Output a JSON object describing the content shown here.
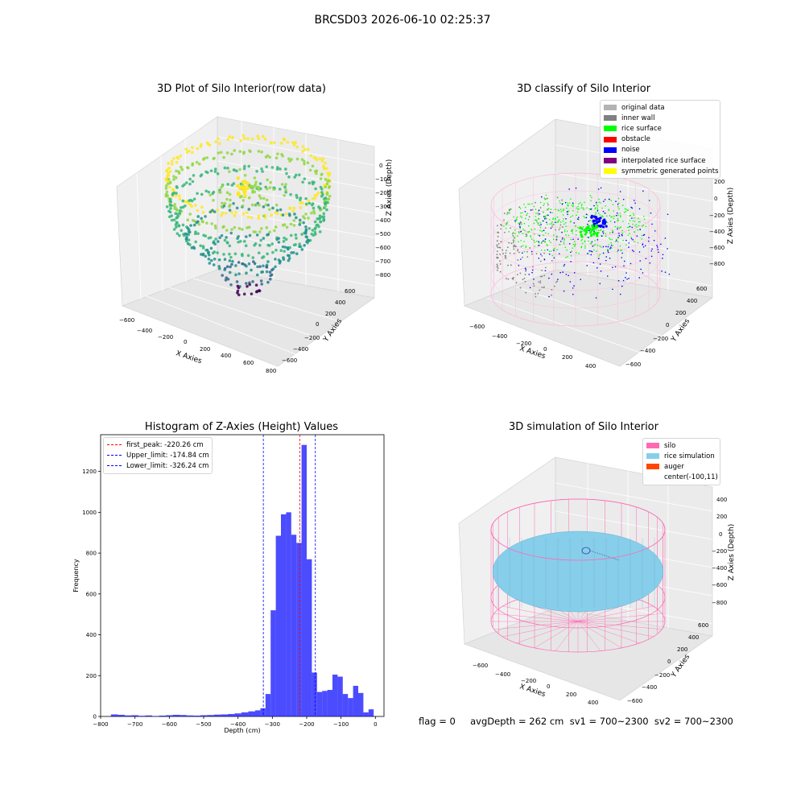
{
  "figure_title": "BRCSD03 2026-06-10 02:25:37",
  "footer_text": "flag = 0     avgDepth = 262 cm  sv1 = 700~2300  sv2 = 700~2300",
  "chart_data": [
    {
      "type": "scatter",
      "title": "3D Plot of Silo Interior(row data)",
      "xlabel": "X Axies",
      "ylabel": "Y Axies",
      "zlabel": "Z Axies (Depth)",
      "xticks": [
        "−600",
        "−400",
        "−200",
        "0",
        "200",
        "400",
        "600",
        "800"
      ],
      "yticks": [
        "−600",
        "−400",
        "−200",
        "0",
        "200",
        "400",
        "600"
      ],
      "zticks": [
        "0",
        "−100",
        "−200",
        "−300",
        "−400",
        "−500",
        "−600",
        "−700",
        "−800"
      ],
      "colormap": [
        "#440154",
        "#31688e",
        "#21918c",
        "#35b779",
        "#90d743",
        "#fde725"
      ],
      "grid": true
    },
    {
      "type": "scatter",
      "title": "3D classify of Silo Interior",
      "xlabel": "X Axies",
      "ylabel": "Y Axies",
      "zlabel": "Z Axies (Depth)",
      "xticks": [
        "−600",
        "−400",
        "−200",
        "0",
        "200",
        "400"
      ],
      "yticks": [
        "−600",
        "−400",
        "−200",
        "0",
        "200",
        "400",
        "600"
      ],
      "zticks": [
        "200",
        "0",
        "−200",
        "−400",
        "−600",
        "−800"
      ],
      "legend_position": "top-right",
      "legend": [
        {
          "label": "original data",
          "color": "#b3b3b3"
        },
        {
          "label": "inner wall",
          "color": "#808080"
        },
        {
          "label": "rice surface",
          "color": "#00ff00"
        },
        {
          "label": "obstacle",
          "color": "#ff0000"
        },
        {
          "label": "noise",
          "color": "#0000ff"
        },
        {
          "label": "interpolated rice surface",
          "color": "#800080"
        },
        {
          "label": "symmetric generated points",
          "color": "#ffff00"
        }
      ],
      "silo_color": "#ffb6d9",
      "grid": true
    },
    {
      "type": "bar",
      "title": "Histogram of Z-Axies (Height) Values",
      "xlabel": "Depth (cm)",
      "ylabel": "Frequency",
      "xlim": [
        -800,
        25
      ],
      "ylim": [
        0,
        1380
      ],
      "xticks": [
        -800,
        -700,
        -600,
        -500,
        -400,
        -300,
        -200,
        -100,
        0
      ],
      "xtick_labels": [
        "−800",
        "−700",
        "−600",
        "−500",
        "−400",
        "−300",
        "−200",
        "−100",
        "0"
      ],
      "yticks": [
        0,
        200,
        400,
        600,
        800,
        1000,
        1200
      ],
      "bar_color": "#0000ff",
      "bins": [
        {
          "x0": -770,
          "x1": -750,
          "v": 10
        },
        {
          "x0": -750,
          "x1": -730,
          "v": 8
        },
        {
          "x0": -730,
          "x1": -710,
          "v": 5
        },
        {
          "x0": -710,
          "x1": -690,
          "v": 6
        },
        {
          "x0": -690,
          "x1": -670,
          "v": 3
        },
        {
          "x0": -670,
          "x1": -650,
          "v": 5
        },
        {
          "x0": -650,
          "x1": -630,
          "v": 2
        },
        {
          "x0": -630,
          "x1": -610,
          "v": 4
        },
        {
          "x0": -610,
          "x1": -590,
          "v": 6
        },
        {
          "x0": -590,
          "x1": -570,
          "v": 8
        },
        {
          "x0": -570,
          "x1": -550,
          "v": 7
        },
        {
          "x0": -550,
          "x1": -530,
          "v": 5
        },
        {
          "x0": -530,
          "x1": -510,
          "v": 4
        },
        {
          "x0": -510,
          "x1": -490,
          "v": 6
        },
        {
          "x0": -490,
          "x1": -470,
          "v": 7
        },
        {
          "x0": -470,
          "x1": -450,
          "v": 9
        },
        {
          "x0": -450,
          "x1": -430,
          "v": 10
        },
        {
          "x0": -430,
          "x1": -410,
          "v": 12
        },
        {
          "x0": -410,
          "x1": -390,
          "v": 15
        },
        {
          "x0": -390,
          "x1": -370,
          "v": 20
        },
        {
          "x0": -370,
          "x1": -350,
          "v": 25
        },
        {
          "x0": -350,
          "x1": -335,
          "v": 30
        },
        {
          "x0": -335,
          "x1": -320,
          "v": 40
        },
        {
          "x0": -320,
          "x1": -305,
          "v": 110
        },
        {
          "x0": -305,
          "x1": -290,
          "v": 520
        },
        {
          "x0": -290,
          "x1": -275,
          "v": 885
        },
        {
          "x0": -275,
          "x1": -260,
          "v": 990
        },
        {
          "x0": -260,
          "x1": -245,
          "v": 1000
        },
        {
          "x0": -245,
          "x1": -230,
          "v": 890
        },
        {
          "x0": -230,
          "x1": -215,
          "v": 850
        },
        {
          "x0": -215,
          "x1": -200,
          "v": 1330
        },
        {
          "x0": -200,
          "x1": -185,
          "v": 770
        },
        {
          "x0": -185,
          "x1": -170,
          "v": 215
        },
        {
          "x0": -170,
          "x1": -155,
          "v": 120
        },
        {
          "x0": -155,
          "x1": -140,
          "v": 125
        },
        {
          "x0": -140,
          "x1": -125,
          "v": 130
        },
        {
          "x0": -125,
          "x1": -110,
          "v": 205
        },
        {
          "x0": -110,
          "x1": -95,
          "v": 195
        },
        {
          "x0": -95,
          "x1": -80,
          "v": 110
        },
        {
          "x0": -80,
          "x1": -65,
          "v": 90
        },
        {
          "x0": -65,
          "x1": -50,
          "v": 150
        },
        {
          "x0": -50,
          "x1": -35,
          "v": 115
        },
        {
          "x0": -35,
          "x1": -20,
          "v": 20
        },
        {
          "x0": -20,
          "x1": -5,
          "v": 35
        }
      ],
      "vlines": [
        {
          "label": "first_peak: -220.26 cm",
          "x": -220.26,
          "color": "#ff0000"
        },
        {
          "label": "Upper_limit: -174.84 cm",
          "x": -174.84,
          "color": "#0000ff"
        },
        {
          "label": "Lower_limit: -326.24 cm",
          "x": -326.24,
          "color": "#0000ff"
        }
      ],
      "legend_position": "top-left",
      "grid": false
    },
    {
      "type": "area",
      "title": "3D simulation of Silo Interior",
      "xlabel": "X Axies",
      "ylabel": "Y Axies",
      "zlabel": "Z Axies (Depth)",
      "xticks": [
        "−600",
        "−400",
        "−200",
        "0",
        "200",
        "400"
      ],
      "yticks": [
        "−600",
        "−400",
        "−200",
        "0",
        "200",
        "400",
        "600"
      ],
      "zticks": [
        "400",
        "200",
        "0",
        "−200",
        "−400",
        "−600",
        "−800"
      ],
      "legend_position": "top-right",
      "legend": [
        {
          "label": "silo",
          "color": "#ff69b4"
        },
        {
          "label": "rice simulation",
          "color": "#87ceeb"
        },
        {
          "label": "auger",
          "color": "#ff4500"
        },
        {
          "label": "center(-100,11)",
          "color": ""
        }
      ],
      "grid": true
    }
  ]
}
